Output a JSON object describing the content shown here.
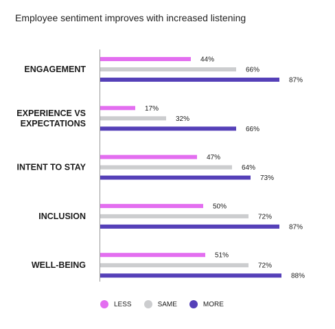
{
  "chart_data": {
    "type": "bar",
    "orientation": "horizontal",
    "title": "Employee sentiment improves with increased listening",
    "categories": [
      [
        "ENGAGEMENT"
      ],
      [
        "EXPERIENCE VS",
        "EXPECTATIONS"
      ],
      [
        "INTENT TO STAY"
      ],
      [
        "INCLUSION"
      ],
      [
        "WELL-BEING"
      ]
    ],
    "series": [
      {
        "name": "LESS",
        "color": "#e36ef0",
        "values": [
          44,
          17,
          47,
          50,
          51
        ],
        "labels": [
          "44%",
          "17%",
          "47%",
          "50%",
          "51%"
        ]
      },
      {
        "name": "SAME",
        "color": "#cccdcf",
        "values": [
          66,
          32,
          64,
          72,
          72
        ],
        "labels": [
          "66%",
          "32%",
          "64%",
          "72%",
          "72%"
        ]
      },
      {
        "name": "MORE",
        "color": "#5540b8",
        "values": [
          87,
          66,
          73,
          87,
          88
        ],
        "labels": [
          "87%",
          "66%",
          "73%",
          "87%",
          "88%"
        ]
      }
    ],
    "xlim": [
      0,
      100
    ],
    "grid": false,
    "legend_position": "bottom"
  }
}
